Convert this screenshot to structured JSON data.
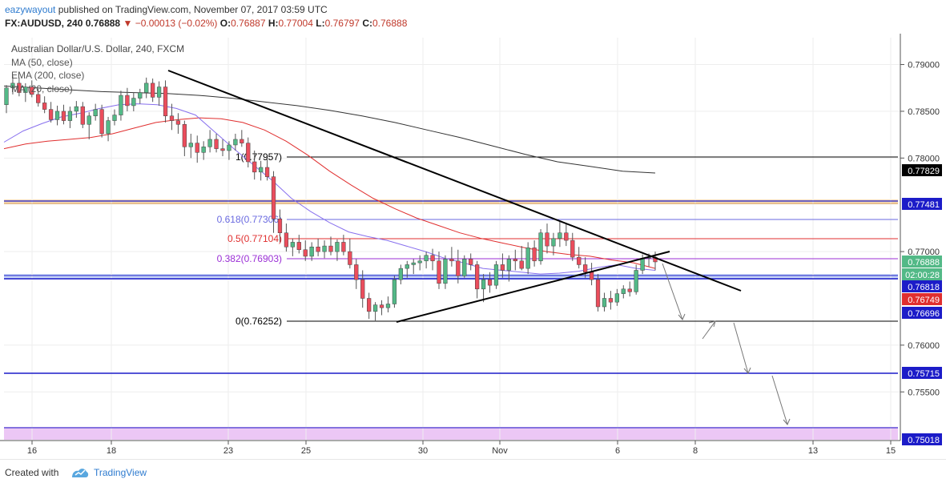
{
  "header": {
    "author": "eazywayout",
    "published_text": "published on TradingView.com, November 07, 2017 03:59 UTC",
    "symbol": "FX:AUDUSD,",
    "interval": "240",
    "last": "0.76888",
    "change": "−0.00013 (−0.02%)",
    "ohlc": [
      {
        "k": "O:",
        "v": "0.76887"
      },
      {
        "k": "H:",
        "v": "0.77004"
      },
      {
        "k": "L:",
        "v": "0.76797"
      },
      {
        "k": "C:",
        "v": "0.76888"
      }
    ]
  },
  "legend": {
    "title": "Australian Dollar/U.S. Dollar, 240, FXCM",
    "lines": [
      "MA (50, close)",
      "EMA (200, close)",
      "MA (20, close)"
    ]
  },
  "footer": {
    "created": "Created with",
    "brand": "TradingView"
  },
  "colors": {
    "up": "#53b987",
    "down": "#eb4d5c",
    "ma50": "#e02f2f",
    "ema200": "#333333",
    "ma20": "#8870ee",
    "fib_0618": "#6a6ae0",
    "fib_05": "#e02f2f",
    "fib_0382": "#9b2fd6",
    "blue_level": "#1c1cc8"
  },
  "chart_data": {
    "type": "candlestick",
    "title": "Australian Dollar/U.S. Dollar, 240, FXCM",
    "ylim": [
      0.7498,
      0.7933
    ],
    "y_ticks": [
      "0.79000",
      "0.78500",
      "0.78000",
      "0.77000",
      "0.76000",
      "0.75500"
    ],
    "x_tick_labels": [
      "16",
      "18",
      "23",
      "25",
      "30",
      "Nov",
      "6",
      "8",
      "13",
      "15"
    ],
    "candles": [
      [
        0.7857,
        0.7878,
        0.7848,
        0.7875
      ],
      [
        0.7875,
        0.7888,
        0.7868,
        0.788
      ],
      [
        0.788,
        0.7886,
        0.7866,
        0.787
      ],
      [
        0.787,
        0.788,
        0.786,
        0.7876
      ],
      [
        0.7876,
        0.7883,
        0.7865,
        0.7868
      ],
      [
        0.7868,
        0.7874,
        0.7855,
        0.7859
      ],
      [
        0.7859,
        0.7866,
        0.7848,
        0.7852
      ],
      [
        0.7852,
        0.786,
        0.7838,
        0.7841
      ],
      [
        0.7841,
        0.7856,
        0.7835,
        0.785
      ],
      [
        0.785,
        0.7857,
        0.7836,
        0.784
      ],
      [
        0.784,
        0.7855,
        0.7832,
        0.785
      ],
      [
        0.785,
        0.7861,
        0.7843,
        0.7855
      ],
      [
        0.7855,
        0.786,
        0.7832,
        0.7836
      ],
      [
        0.7836,
        0.7849,
        0.782,
        0.7845
      ],
      [
        0.7845,
        0.7858,
        0.784,
        0.7852
      ],
      [
        0.7852,
        0.7857,
        0.7822,
        0.7826
      ],
      [
        0.7826,
        0.7844,
        0.7818,
        0.784
      ],
      [
        0.784,
        0.7852,
        0.7835,
        0.7846
      ],
      [
        0.7846,
        0.7872,
        0.784,
        0.7867
      ],
      [
        0.7867,
        0.7875,
        0.785,
        0.7856
      ],
      [
        0.7856,
        0.787,
        0.785,
        0.7864
      ],
      [
        0.7864,
        0.7874,
        0.7858,
        0.787
      ],
      [
        0.787,
        0.7886,
        0.7864,
        0.788
      ],
      [
        0.788,
        0.7885,
        0.786,
        0.7865
      ],
      [
        0.7865,
        0.7882,
        0.7856,
        0.7876
      ],
      [
        0.7876,
        0.7883,
        0.7838,
        0.7845
      ],
      [
        0.7845,
        0.7858,
        0.783,
        0.784
      ],
      [
        0.784,
        0.7848,
        0.7826,
        0.7836
      ],
      [
        0.7836,
        0.784,
        0.7802,
        0.7812
      ],
      [
        0.7812,
        0.7826,
        0.78,
        0.7816
      ],
      [
        0.7816,
        0.7824,
        0.7795,
        0.7806
      ],
      [
        0.7806,
        0.7818,
        0.7798,
        0.7812
      ],
      [
        0.7812,
        0.783,
        0.7806,
        0.782
      ],
      [
        0.782,
        0.7826,
        0.7806,
        0.781
      ],
      [
        0.781,
        0.782,
        0.7802,
        0.7808
      ],
      [
        0.7808,
        0.7818,
        0.7798,
        0.7814
      ],
      [
        0.7814,
        0.7826,
        0.7808,
        0.782
      ],
      [
        0.782,
        0.783,
        0.7812,
        0.7816
      ],
      [
        0.7816,
        0.7822,
        0.779,
        0.7796
      ],
      [
        0.7796,
        0.7808,
        0.7777,
        0.7785
      ],
      [
        0.7785,
        0.7797,
        0.7776,
        0.779
      ],
      [
        0.779,
        0.78,
        0.7776,
        0.778
      ],
      [
        0.778,
        0.7786,
        0.772,
        0.7735
      ],
      [
        0.7735,
        0.7745,
        0.771,
        0.772
      ],
      [
        0.772,
        0.773,
        0.77,
        0.7705
      ],
      [
        0.7705,
        0.7714,
        0.7695,
        0.771
      ],
      [
        0.771,
        0.7718,
        0.7698,
        0.7702
      ],
      [
        0.7702,
        0.7712,
        0.769,
        0.7695
      ],
      [
        0.7695,
        0.771,
        0.769,
        0.7705
      ],
      [
        0.7705,
        0.7714,
        0.7695,
        0.77
      ],
      [
        0.77,
        0.7712,
        0.7693,
        0.7706
      ],
      [
        0.7706,
        0.7716,
        0.7696,
        0.77
      ],
      [
        0.77,
        0.7713,
        0.769,
        0.771
      ],
      [
        0.771,
        0.7718,
        0.7696,
        0.77
      ],
      [
        0.77,
        0.7714,
        0.7682,
        0.7686
      ],
      [
        0.7686,
        0.7692,
        0.766,
        0.767
      ],
      [
        0.767,
        0.768,
        0.764,
        0.765
      ],
      [
        0.765,
        0.7656,
        0.7628,
        0.7636
      ],
      [
        0.7636,
        0.7646,
        0.7625,
        0.7643
      ],
      [
        0.7643,
        0.7648,
        0.7632,
        0.764
      ],
      [
        0.764,
        0.7652,
        0.7635,
        0.7644
      ],
      [
        0.7644,
        0.7674,
        0.764,
        0.767
      ],
      [
        0.767,
        0.7686,
        0.7665,
        0.7682
      ],
      [
        0.7682,
        0.769,
        0.7672,
        0.7686
      ],
      [
        0.7686,
        0.7692,
        0.7676,
        0.7688
      ],
      [
        0.7688,
        0.7696,
        0.768,
        0.769
      ],
      [
        0.769,
        0.77,
        0.7682,
        0.7696
      ],
      [
        0.7696,
        0.7703,
        0.768,
        0.769
      ],
      [
        0.769,
        0.77,
        0.766,
        0.7666
      ],
      [
        0.7666,
        0.7696,
        0.766,
        0.7692
      ],
      [
        0.7692,
        0.7705,
        0.7684,
        0.769
      ],
      [
        0.769,
        0.7702,
        0.7666,
        0.7674
      ],
      [
        0.7674,
        0.7696,
        0.7672,
        0.7692
      ],
      [
        0.7692,
        0.7698,
        0.768,
        0.7686
      ],
      [
        0.7686,
        0.769,
        0.765,
        0.766
      ],
      [
        0.766,
        0.7676,
        0.7646,
        0.767
      ],
      [
        0.767,
        0.7678,
        0.7656,
        0.7664
      ],
      [
        0.7664,
        0.769,
        0.766,
        0.7686
      ],
      [
        0.7686,
        0.7698,
        0.7672,
        0.768
      ],
      [
        0.768,
        0.7696,
        0.7668,
        0.7692
      ],
      [
        0.7692,
        0.7702,
        0.768,
        0.769
      ],
      [
        0.769,
        0.7706,
        0.768,
        0.7682
      ],
      [
        0.7682,
        0.771,
        0.7676,
        0.7704
      ],
      [
        0.7704,
        0.7712,
        0.7684,
        0.769
      ],
      [
        0.769,
        0.7724,
        0.7686,
        0.772
      ],
      [
        0.772,
        0.773,
        0.7698,
        0.7706
      ],
      [
        0.7706,
        0.772,
        0.7696,
        0.7714
      ],
      [
        0.7714,
        0.7732,
        0.7705,
        0.772
      ],
      [
        0.772,
        0.773,
        0.7706,
        0.7712
      ],
      [
        0.7712,
        0.772,
        0.769,
        0.7694
      ],
      [
        0.7694,
        0.7705,
        0.7682,
        0.7686
      ],
      [
        0.7686,
        0.7694,
        0.7672,
        0.7678
      ],
      [
        0.7678,
        0.7688,
        0.7664,
        0.767
      ],
      [
        0.767,
        0.7676,
        0.7636,
        0.7641
      ],
      [
        0.7641,
        0.7656,
        0.7636,
        0.765
      ],
      [
        0.765,
        0.7658,
        0.7638,
        0.7646
      ],
      [
        0.7646,
        0.766,
        0.7642,
        0.7655
      ],
      [
        0.7655,
        0.7664,
        0.765,
        0.766
      ],
      [
        0.766,
        0.7668,
        0.7652,
        0.7657
      ],
      [
        0.7657,
        0.7686,
        0.7654,
        0.768
      ],
      [
        0.768,
        0.7697,
        0.7676,
        0.7693
      ],
      [
        0.7693,
        0.7698,
        0.7684,
        0.7694
      ],
      [
        0.7694,
        0.77,
        0.768,
        0.7689
      ]
    ],
    "ma20": [
      0.7817,
      0.7829,
      0.7837,
      0.7844,
      0.7848,
      0.7853,
      0.7857,
      0.7858,
      0.7857,
      0.7853,
      0.7846,
      0.7828,
      0.781,
      0.7793,
      0.7776,
      0.7757,
      0.7743,
      0.7731,
      0.7721,
      0.7716,
      0.7712,
      0.7706,
      0.77,
      0.7693,
      0.7688,
      0.7682,
      0.768,
      0.7678,
      0.7676,
      0.7677,
      0.7679,
      0.7683,
      0.7686,
      0.7682,
      0.768
    ],
    "ma50": [
      0.781,
      0.7815,
      0.7818,
      0.782,
      0.7822,
      0.7826,
      0.7832,
      0.7838,
      0.7841,
      0.7843,
      0.7842,
      0.7838,
      0.783,
      0.7818,
      0.7803,
      0.7786,
      0.7771,
      0.7757,
      0.7746,
      0.7736,
      0.7728,
      0.772,
      0.7714,
      0.7709,
      0.7704,
      0.77,
      0.7697,
      0.7695,
      0.7691,
      0.7688,
      0.7682
    ],
    "ema200": [
      0.7877,
      0.7875,
      0.7873,
      0.7871,
      0.787,
      0.7869,
      0.7867,
      0.7864,
      0.786,
      0.7856,
      0.7851,
      0.7845,
      0.7838,
      0.783,
      0.7822,
      0.7813,
      0.7804,
      0.7796,
      0.7791,
      0.7786,
      0.7784
    ]
  },
  "levels": {
    "fib_1": "1(0.77957)",
    "fib_0618": "0.618(0.77306)",
    "fib_05": "0.5(0.77104)",
    "fib_0382": "0.382(0.76903)",
    "fib_0": "0(0.76252)"
  },
  "price_tags": [
    {
      "text": "0.77829",
      "bg": "#000000",
      "fg": "#ffffff"
    },
    {
      "text": "0.77481",
      "bg": "#1c1cc8",
      "fg": "#ffffff"
    },
    {
      "text": "0.76888",
      "bg": "#53b987",
      "fg": "#ffffff"
    },
    {
      "text": "02:00:28",
      "bg": "#53b987",
      "fg": "#ffffff"
    },
    {
      "text": "0.76818",
      "bg": "#1c1cc8",
      "fg": "#ffffff"
    },
    {
      "text": "0.76749",
      "bg": "#e02f2f",
      "fg": "#ffffff"
    },
    {
      "text": "0.76696",
      "bg": "#1c1cc8",
      "fg": "#ffffff"
    },
    {
      "text": "0.75715",
      "bg": "#1c1cc8",
      "fg": "#ffffff"
    },
    {
      "text": "0.75018",
      "bg": "#1c1cc8",
      "fg": "#ffffff"
    }
  ]
}
